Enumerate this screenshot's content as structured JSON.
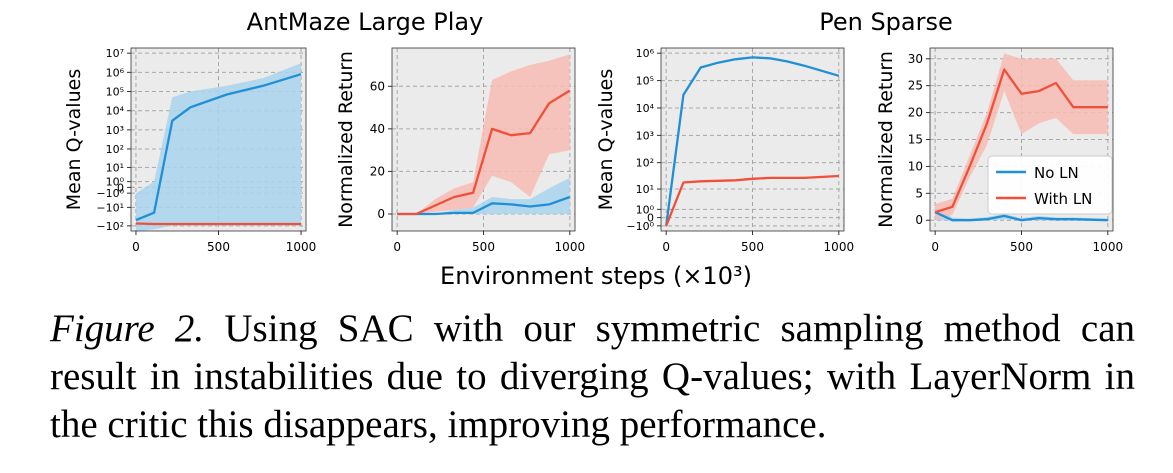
{
  "caption": {
    "label": "Figure 2.",
    "text": "Using SAC with our symmetric sampling method can result in instabilities due to diverging Q-values; with LayerNorm in the critic this disappears, improving performance."
  },
  "group_titles": [
    "AntMaze Large Play",
    "Pen Sparse"
  ],
  "shared_xlabel": "Environment steps (×10³)",
  "legend": {
    "placement": "lower-right of last panel",
    "entries": [
      "No LN",
      "With LN"
    ]
  },
  "colors": {
    "No LN": "#1f8fd8",
    "No LN_band": "#a9d3ec",
    "With LN": "#f0503a",
    "With LN_band": "#f7bcb3",
    "panel_bg": "#ebebeb",
    "grid": "#a8a8a8"
  },
  "chart_data": [
    {
      "type": "line",
      "panel": "AntMaze Large Play - Q-values",
      "ylabel": "Mean Q-values",
      "yscale": "symlog",
      "xlim": [
        -30,
        1030
      ],
      "xticks": [
        0,
        500,
        1000
      ],
      "yticks": [
        -100,
        -10,
        -1,
        0,
        1,
        10,
        100,
        1000,
        10000,
        100000,
        1000000,
        10000000
      ],
      "ytick_labels": [
        "−10²",
        "−10¹",
        "−10⁰",
        "0",
        "10⁰",
        "10¹",
        "10²",
        "10³",
        "10⁴",
        "10⁵",
        "10⁶",
        "10⁷"
      ],
      "grid": true,
      "series": [
        {
          "name": "No LN",
          "x": [
            0,
            110,
            220,
            330,
            550,
            770,
            1000
          ],
          "values": [
            -50,
            -20,
            3000,
            15000,
            70000,
            200000,
            800000
          ],
          "lower": [
            -200,
            -150,
            -100,
            -100,
            -100,
            -100,
            -100
          ],
          "upper": [
            -1,
            1,
            50000,
            100000,
            200000,
            500000,
            3000000
          ]
        },
        {
          "name": "With LN",
          "x": [
            0,
            110,
            220,
            330,
            550,
            770,
            1000
          ],
          "values": [
            -75,
            -80,
            -80,
            -80,
            -80,
            -80,
            -80
          ]
        }
      ]
    },
    {
      "type": "line",
      "panel": "AntMaze Large Play - Return",
      "ylabel": "Normalized Return",
      "xlim": [
        -30,
        1030
      ],
      "ylim": [
        -8,
        78
      ],
      "xticks": [
        0,
        500,
        1000
      ],
      "yticks": [
        0,
        20,
        40,
        60
      ],
      "grid": true,
      "series": [
        {
          "name": "No LN",
          "x": [
            0,
            110,
            220,
            330,
            440,
            550,
            660,
            770,
            880,
            1000
          ],
          "values": [
            0,
            0,
            0,
            0.5,
            0.5,
            5,
            4.5,
            3.5,
            4.5,
            8
          ],
          "lower": [
            0,
            0,
            0,
            0,
            0,
            0,
            0,
            0,
            0,
            0
          ],
          "upper": [
            0,
            0,
            0,
            2,
            3,
            8,
            7,
            7,
            12,
            17
          ]
        },
        {
          "name": "With LN",
          "x": [
            0,
            110,
            220,
            330,
            440,
            550,
            660,
            770,
            880,
            1000
          ],
          "values": [
            0,
            0,
            4,
            8,
            10,
            40,
            37,
            38,
            52,
            58
          ],
          "lower": [
            0,
            0,
            1,
            2,
            3,
            18,
            15,
            8,
            28,
            30
          ],
          "upper": [
            0,
            0,
            7,
            12,
            15,
            63,
            67,
            70,
            72,
            75
          ]
        }
      ]
    },
    {
      "type": "line",
      "panel": "Pen Sparse - Q-values",
      "ylabel": "Mean Q-values",
      "yscale": "symlog",
      "xlim": [
        -30,
        1030
      ],
      "xticks": [
        0,
        500,
        1000
      ],
      "yticks": [
        -1,
        0,
        1,
        10,
        100,
        1000,
        10000,
        100000,
        1000000
      ],
      "ytick_labels": [
        "−10⁰",
        "0",
        "10⁰",
        "10¹",
        "10²",
        "10³",
        "10⁴",
        "10⁵",
        "10⁶"
      ],
      "grid": true,
      "series": [
        {
          "name": "No LN",
          "x": [
            0,
            100,
            200,
            300,
            400,
            500,
            600,
            700,
            800,
            1000
          ],
          "values": [
            -1,
            30000,
            300000,
            450000,
            600000,
            700000,
            650000,
            500000,
            350000,
            150000
          ]
        },
        {
          "name": "With LN",
          "x": [
            0,
            100,
            200,
            300,
            400,
            500,
            600,
            700,
            800,
            1000
          ],
          "values": [
            -1,
            18,
            20,
            21,
            22,
            25,
            27,
            27,
            27,
            32
          ]
        }
      ]
    },
    {
      "type": "line",
      "panel": "Pen Sparse - Return",
      "ylabel": "Normalized Return",
      "xlim": [
        -30,
        1030
      ],
      "ylim": [
        -2,
        32
      ],
      "xticks": [
        0,
        500,
        1000
      ],
      "yticks": [
        0,
        5,
        10,
        15,
        20,
        25,
        30
      ],
      "grid": true,
      "series": [
        {
          "name": "No LN",
          "x": [
            0,
            100,
            200,
            300,
            400,
            500,
            600,
            700,
            800,
            1000
          ],
          "values": [
            1.5,
            0,
            0,
            0.2,
            0.8,
            0,
            0.4,
            0.2,
            0.2,
            0
          ],
          "lower": [
            0,
            0,
            0,
            0,
            0.2,
            0,
            0,
            0,
            0,
            0
          ],
          "upper": [
            2.5,
            0.5,
            0.3,
            0.6,
            1.2,
            0.4,
            0.8,
            0.5,
            0.5,
            0.3
          ]
        },
        {
          "name": "With LN",
          "x": [
            0,
            100,
            200,
            300,
            400,
            500,
            600,
            700,
            800,
            1000
          ],
          "values": [
            1.5,
            2.5,
            10,
            18,
            28,
            23.5,
            24,
            25.5,
            21,
            21
          ],
          "lower": [
            0,
            1,
            8,
            14,
            24,
            16,
            18,
            19,
            16,
            16
          ],
          "upper": [
            3,
            4,
            12,
            20,
            31,
            30,
            30,
            30,
            26,
            26
          ]
        }
      ]
    }
  ]
}
